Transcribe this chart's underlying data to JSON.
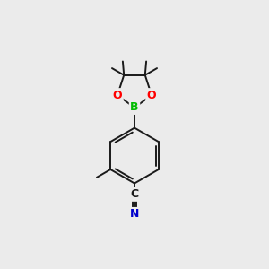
{
  "bg_color": "#ebebeb",
  "bond_color": "#1a1a1a",
  "bond_width": 1.4,
  "atom_colors": {
    "B": "#00bb00",
    "O": "#ff0000",
    "N": "#0000cc",
    "C": "#1a1a1a"
  },
  "figsize": [
    3.0,
    3.0
  ],
  "dpi": 100
}
